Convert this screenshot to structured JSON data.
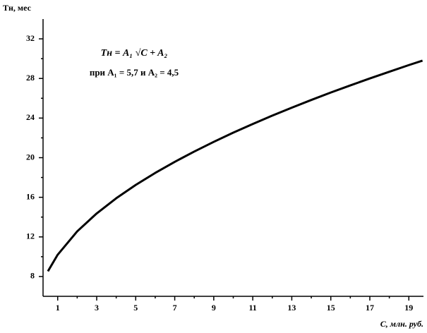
{
  "chart_data": {
    "type": "line",
    "y_label": "Tн, мес",
    "x_label": "C, млн. руб.",
    "annotations": [
      "Tн = A₁ √C + A₂",
      "при A₁ = 5,7 и A₂ = 4,5"
    ],
    "x": [
      0.5,
      1,
      2,
      3,
      4,
      5,
      6,
      7,
      8,
      9,
      10,
      11,
      12,
      13,
      14,
      15,
      16,
      17,
      18,
      19,
      19.7
    ],
    "series": [
      {
        "color": "#000000",
        "values": [
          8.53,
          10.2,
          12.56,
          14.37,
          15.9,
          17.25,
          18.46,
          19.58,
          20.62,
          21.6,
          22.53,
          23.4,
          24.25,
          25.05,
          25.83,
          26.58,
          27.3,
          28.0,
          28.68,
          29.35,
          29.8
        ]
      }
    ],
    "xlim": [
      0.25,
      19.75
    ],
    "ylim": [
      6,
      34
    ],
    "xticks": [
      1,
      3,
      5,
      7,
      9,
      11,
      13,
      15,
      17,
      19
    ],
    "xminor_ticks": [
      2,
      4,
      6,
      8,
      10,
      12,
      14,
      16,
      18
    ],
    "yticks": [
      8,
      12,
      16,
      20,
      24,
      28,
      32
    ],
    "yminor_ticks": [
      10,
      14,
      18,
      22,
      26,
      30
    ],
    "grid": false
  }
}
